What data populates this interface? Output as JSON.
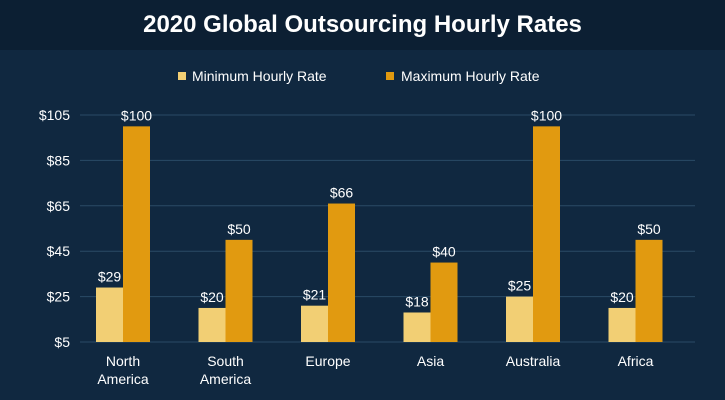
{
  "chart_data": {
    "type": "bar",
    "title": "2020 Global Outsourcing Hourly Rates",
    "categories": [
      [
        "North",
        "America"
      ],
      [
        "South",
        "America"
      ],
      [
        "Europe"
      ],
      [
        "Asia"
      ],
      [
        "Australia"
      ],
      [
        "Africa"
      ]
    ],
    "series": [
      {
        "name": "Minimum Hourly Rate",
        "color": "#f2cf74",
        "values": [
          29,
          20,
          21,
          18,
          25,
          20
        ],
        "labels": [
          "$29",
          "$20",
          "$21",
          "$18",
          "$25",
          "$20"
        ]
      },
      {
        "name": "Maximum Hourly Rate",
        "color": "#e19a10",
        "values": [
          100,
          50,
          66,
          40,
          100,
          50
        ],
        "labels": [
          "$100",
          "$50",
          "$66",
          "$40",
          "$100",
          "$50"
        ]
      }
    ],
    "ylim": [
      5,
      105
    ],
    "yticks": [
      5,
      25,
      45,
      65,
      85,
      105
    ],
    "ytick_labels": [
      "$5",
      "$25",
      "$45",
      "$65",
      "$85",
      "$105"
    ],
    "legend_position": "top-center",
    "xlabel": "",
    "ylabel": ""
  },
  "colors": {
    "background": "#102840",
    "title_band": "#0c1f33",
    "grid": "#2a4a66",
    "text": "#ffffff"
  }
}
